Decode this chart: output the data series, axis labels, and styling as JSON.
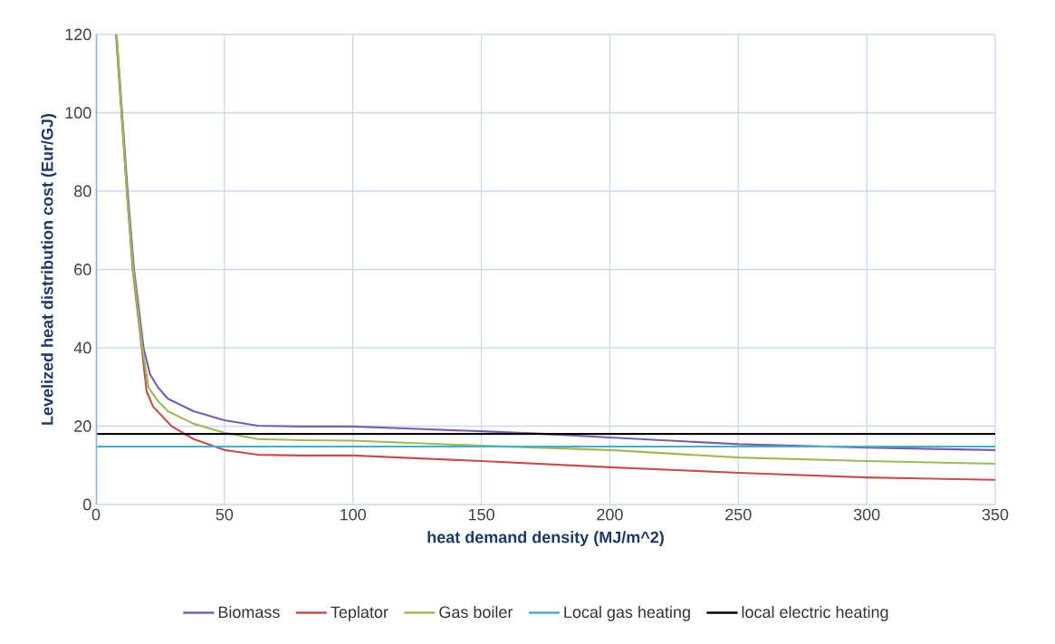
{
  "chart_data": {
    "type": "line",
    "xlabel": "heat demand density (MJ/m^2)",
    "ylabel": "Levelized heat distribution cost (Eur/GJ)",
    "xlim": [
      0,
      350
    ],
    "xticks": [
      0,
      50,
      100,
      150,
      200,
      250,
      300,
      350
    ],
    "ylim": [
      0,
      120
    ],
    "yticks": [
      0,
      20,
      40,
      60,
      80,
      100,
      120
    ],
    "grid": true,
    "legend": "bottom",
    "line_style": "solid",
    "marker": "none",
    "series": [
      {
        "name": "Biomass",
        "color": "#7b5ea7",
        "x": [
          8,
          12.3,
          14.8,
          18.5,
          21,
          24,
          28,
          38,
          50,
          63,
          80,
          100,
          125,
          150,
          175,
          200,
          250,
          300,
          350
        ],
        "values": [
          120,
          80,
          60,
          40,
          33.3,
          30,
          27,
          23.8,
          21.5,
          20.1,
          19.9,
          19.9,
          19.3,
          18.7,
          18,
          17.1,
          15.4,
          14.5,
          13.9
        ]
      },
      {
        "name": "Teplator",
        "color": "#c0504d",
        "x": [
          7.8,
          12,
          14.3,
          17.8,
          19.7,
          22.2,
          29.6,
          38,
          50,
          63,
          80,
          100,
          150,
          200,
          250,
          300,
          350
        ],
        "values": [
          120,
          80,
          60,
          40,
          28.9,
          25,
          19.9,
          16.7,
          13.9,
          12.7,
          12.5,
          12.5,
          11.1,
          9.5,
          8.1,
          6.9,
          6.3
        ]
      },
      {
        "name": "Gas boiler",
        "color": "#9bbb59",
        "x": [
          8,
          12,
          14.5,
          18,
          20.5,
          24,
          28,
          38,
          50,
          63,
          80,
          100,
          150,
          200,
          250,
          300,
          350
        ],
        "values": [
          120,
          80,
          60,
          40,
          29.8,
          26.5,
          23.8,
          20.6,
          18.3,
          16.7,
          16.4,
          16.3,
          15,
          13.9,
          12,
          11.1,
          10.4
        ]
      },
      {
        "name": "Local gas heating",
        "color": "#4bacc6",
        "x": [
          0,
          350
        ],
        "values": [
          14.8,
          14.8
        ]
      },
      {
        "name": "local electric heating",
        "color": "#000000",
        "x": [
          0,
          350
        ],
        "values": [
          18,
          18
        ]
      }
    ]
  }
}
